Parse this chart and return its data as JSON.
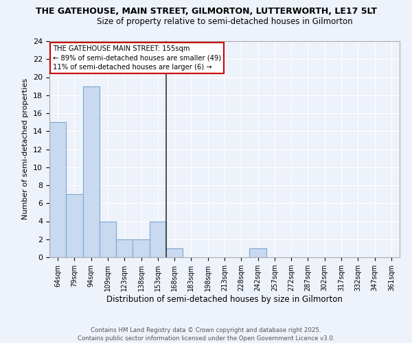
{
  "title1": "THE GATEHOUSE, MAIN STREET, GILMORTON, LUTTERWORTH, LE17 5LT",
  "title2": "Size of property relative to semi-detached houses in Gilmorton",
  "xlabel": "Distribution of semi-detached houses by size in Gilmorton",
  "ylabel": "Number of semi-detached properties",
  "bins": [
    "64sqm",
    "79sqm",
    "94sqm",
    "109sqm",
    "123sqm",
    "138sqm",
    "153sqm",
    "168sqm",
    "183sqm",
    "198sqm",
    "213sqm",
    "228sqm",
    "242sqm",
    "257sqm",
    "272sqm",
    "287sqm",
    "302sqm",
    "317sqm",
    "332sqm",
    "347sqm",
    "361sqm"
  ],
  "values": [
    15,
    7,
    19,
    4,
    2,
    2,
    4,
    1,
    0,
    0,
    0,
    0,
    1,
    0,
    0,
    0,
    0,
    0,
    0,
    0
  ],
  "bar_color": "#c9d9f0",
  "bar_edge_color": "#7aa8d4",
  "subject_line_color": "#333333",
  "ylim": [
    0,
    24
  ],
  "yticks": [
    0,
    2,
    4,
    6,
    8,
    10,
    12,
    14,
    16,
    18,
    20,
    22,
    24
  ],
  "annotation_title": "THE GATEHOUSE MAIN STREET: 155sqm",
  "annotation_line1": "← 89% of semi-detached houses are smaller (49)",
  "annotation_line2": "11% of semi-detached houses are larger (6) →",
  "annotation_box_color": "#ffffff",
  "annotation_box_edge": "#cc0000",
  "bg_color": "#eef2fa",
  "grid_color": "#ffffff",
  "footer1": "Contains HM Land Registry data © Crown copyright and database right 2025.",
  "footer2": "Contains public sector information licensed under the Open Government Licence v3.0."
}
